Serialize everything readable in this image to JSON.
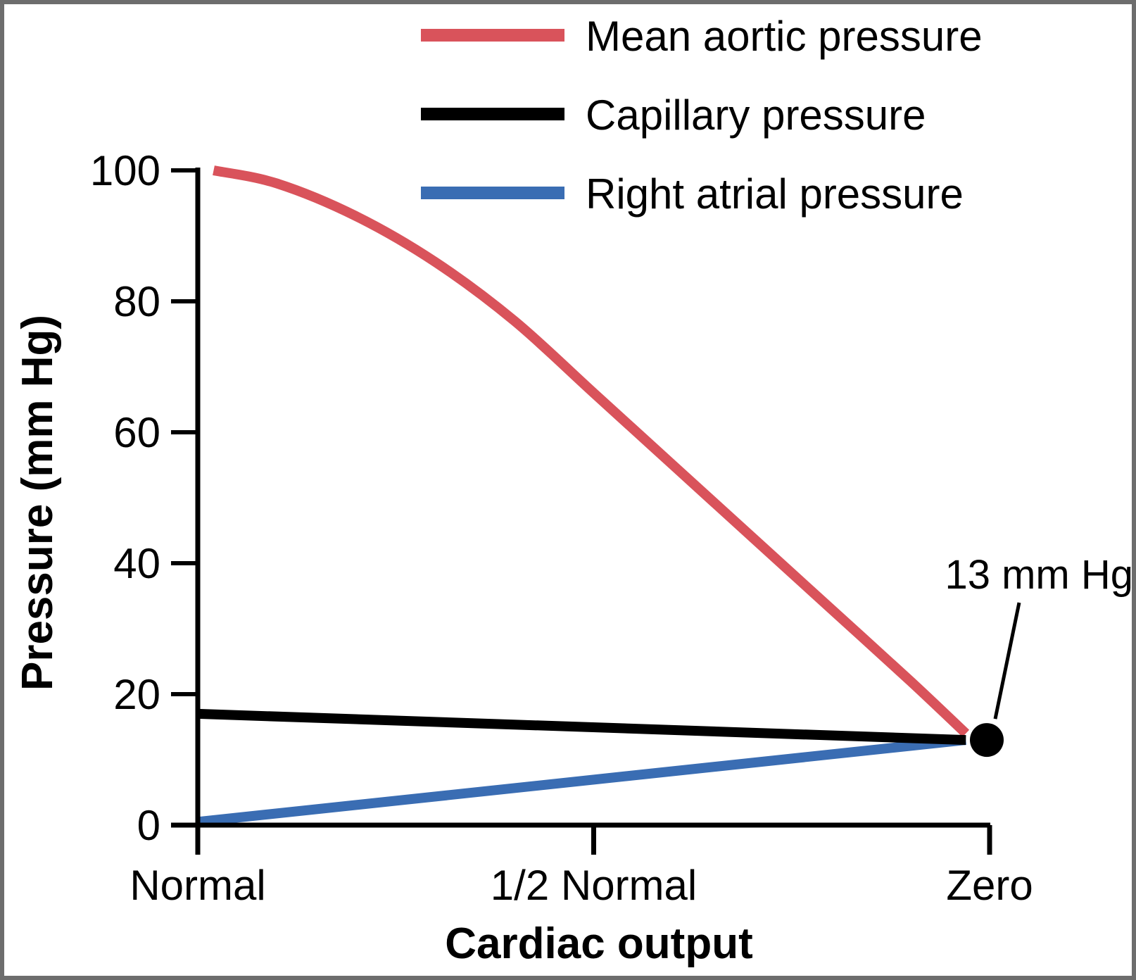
{
  "chart_data": {
    "type": "line",
    "xlabel": "Cardiac output",
    "ylabel": "Pressure (mm Hg)",
    "x_categories": [
      "Normal",
      "1/2 Normal",
      "Zero"
    ],
    "xlim": [
      0,
      1
    ],
    "ylim": [
      0,
      100
    ],
    "yticks": [
      0,
      20,
      40,
      60,
      80,
      100
    ],
    "grid": false,
    "legend_position": "top-right",
    "series": [
      {
        "name": "Mean aortic pressure",
        "color": "#d9535b",
        "x": [
          0.02,
          0.1,
          0.2,
          0.3,
          0.4,
          0.5,
          0.6,
          0.7,
          0.8,
          0.9,
          0.97
        ],
        "y": [
          100,
          98,
          93,
          86,
          77,
          66,
          55,
          44,
          33,
          22,
          14
        ]
      },
      {
        "name": "Capillary pressure",
        "color": "#000000",
        "x": [
          0,
          0.97
        ],
        "y": [
          17,
          13
        ]
      },
      {
        "name": "Right atrial pressure",
        "color": "#3a6db3",
        "x": [
          0,
          0.97
        ],
        "y": [
          0.5,
          13
        ]
      }
    ],
    "annotations": [
      {
        "text": "13 mm Hg",
        "x": 1.0,
        "y": 13
      }
    ]
  }
}
